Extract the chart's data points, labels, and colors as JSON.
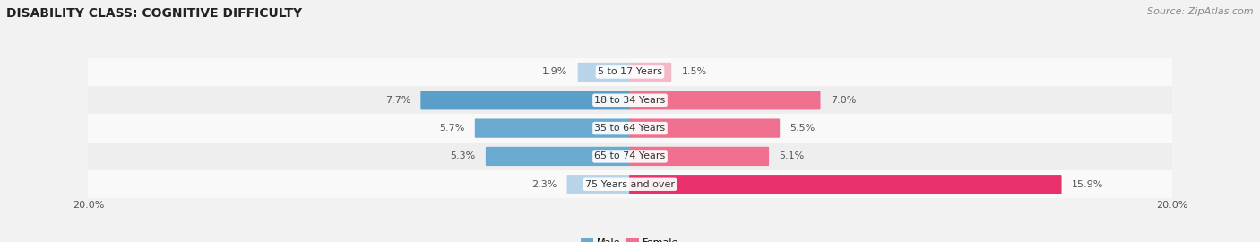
{
  "title": "DISABILITY CLASS: COGNITIVE DIFFICULTY",
  "source": "Source: ZipAtlas.com",
  "categories": [
    "5 to 17 Years",
    "18 to 34 Years",
    "35 to 64 Years",
    "65 to 74 Years",
    "75 Years and over"
  ],
  "male_values": [
    1.9,
    7.7,
    5.7,
    5.3,
    2.3
  ],
  "female_values": [
    1.5,
    7.0,
    5.5,
    5.1,
    15.9
  ],
  "male_colors": [
    "#b8d4e8",
    "#5a9ec9",
    "#6aaad1",
    "#6aaad1",
    "#b8d4e8"
  ],
  "female_colors": [
    "#f4b8c8",
    "#f07090",
    "#f07090",
    "#f07090",
    "#e8306a"
  ],
  "axis_max": 20.0,
  "bar_height": 0.62,
  "background_color": "#f2f2f2",
  "row_colors": [
    "#f9f9f9",
    "#eeeeee",
    "#f9f9f9",
    "#eeeeee",
    "#f9f9f9"
  ],
  "title_fontsize": 10,
  "label_fontsize": 8,
  "source_fontsize": 8
}
